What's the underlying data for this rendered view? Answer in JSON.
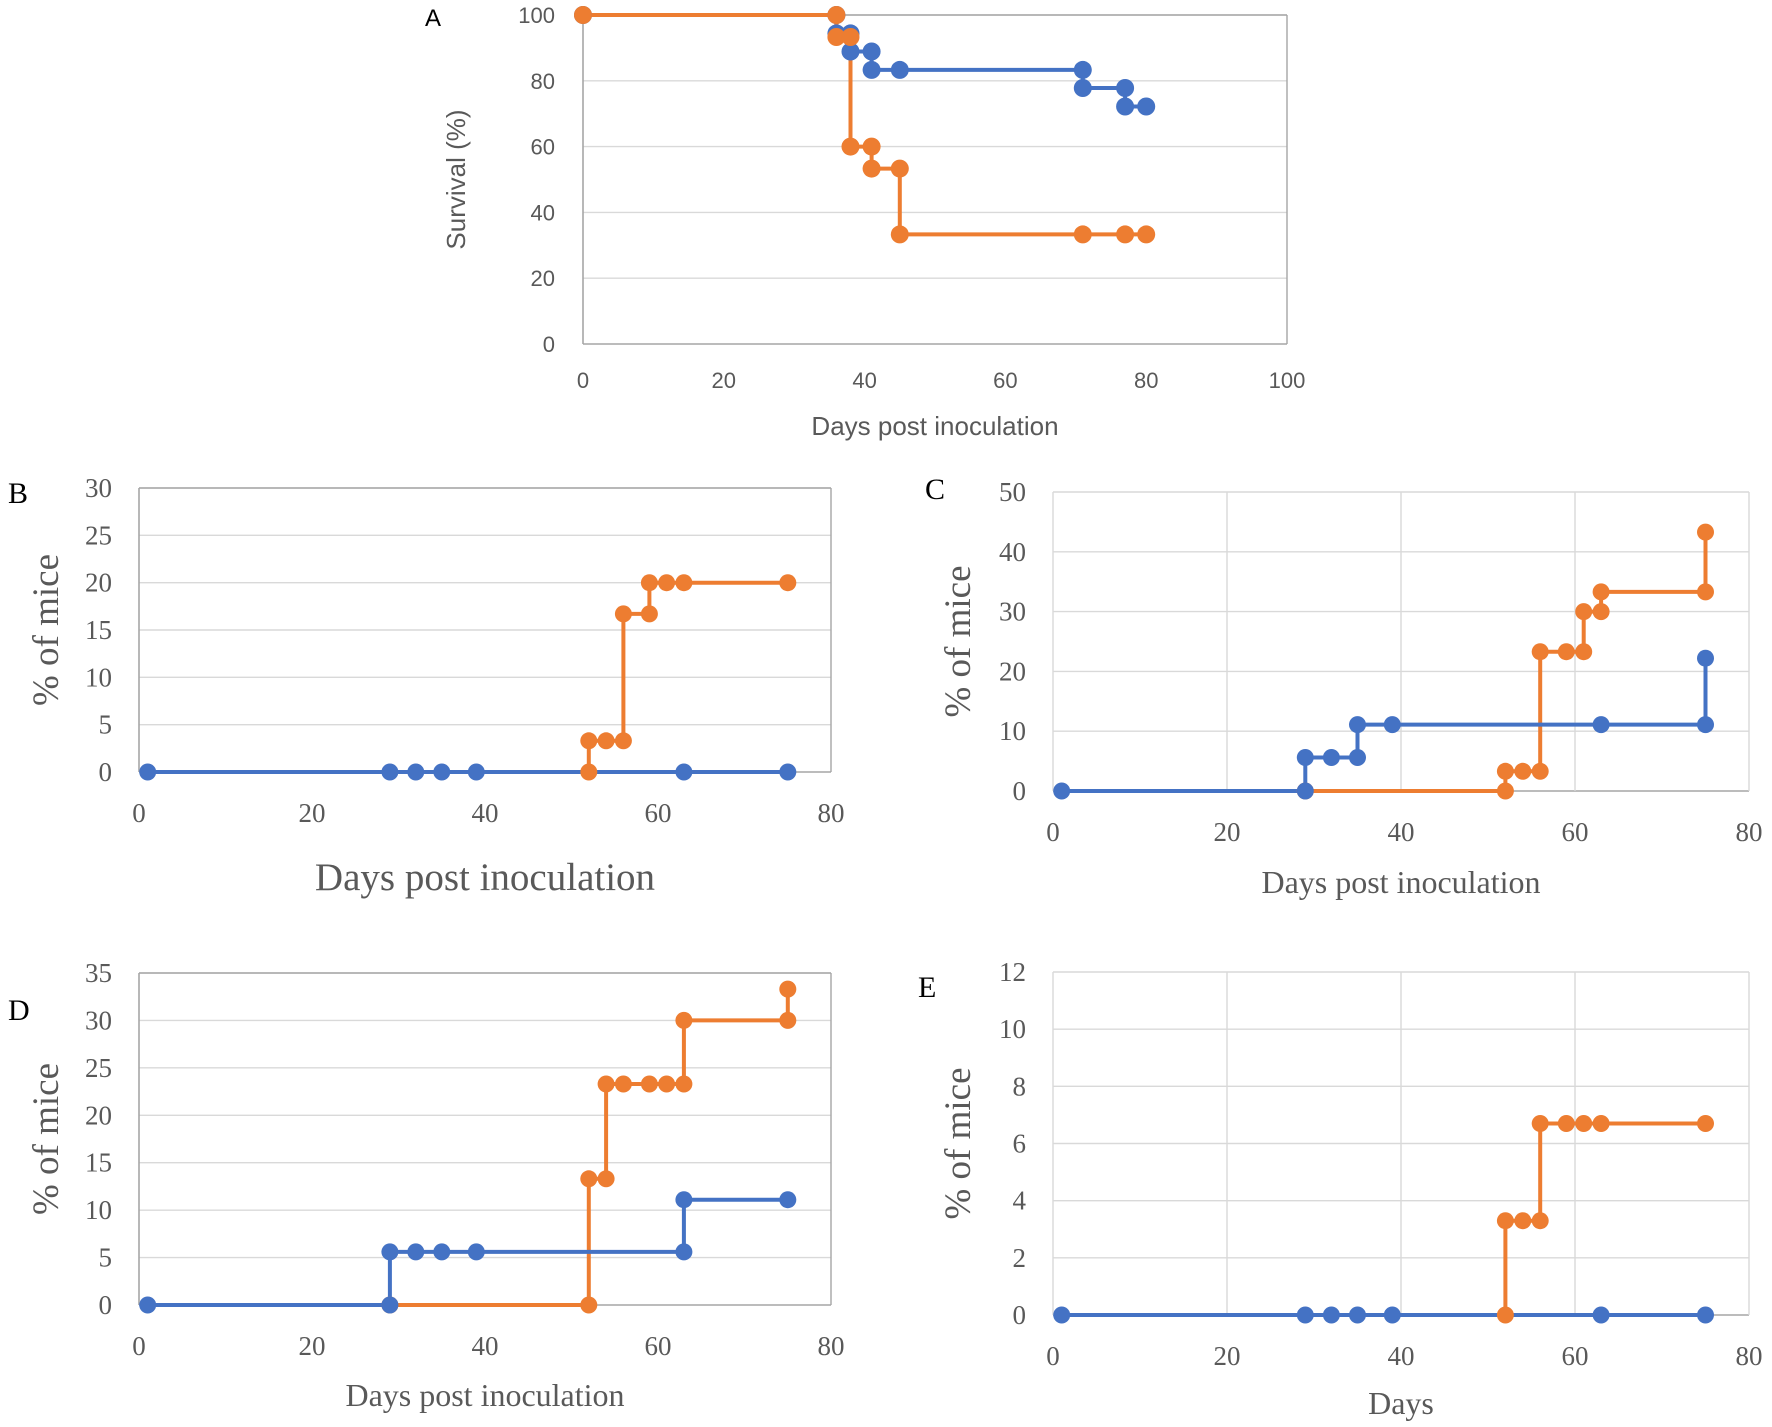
{
  "colors": {
    "series_blue": "#4472C4",
    "series_orange": "#ED7D31",
    "grid": "#D9D9D9",
    "axis": "#A6A6A6"
  },
  "chart_data": [
    {
      "panel": "A",
      "type": "line",
      "step": true,
      "xlabel": "Days  post inoculation",
      "ylabel": "Survival (%)",
      "xlim": [
        0,
        100
      ],
      "ylim": [
        0,
        100
      ],
      "xticks": [
        "0",
        "20",
        "40",
        "60",
        "80",
        "100"
      ],
      "yticks": [
        "0",
        "20",
        "40",
        "60",
        "80",
        "100"
      ],
      "grid": "horizontal",
      "series": [
        {
          "name": "blue",
          "color": "#4472C4",
          "points": [
            [
              0,
              100
            ],
            [
              36,
              100
            ],
            [
              36,
              94.4
            ],
            [
              38,
              94.4
            ],
            [
              38,
              88.9
            ],
            [
              41,
              88.9
            ],
            [
              41,
              83.3
            ],
            [
              45,
              83.3
            ],
            [
              71,
              83.3
            ],
            [
              71,
              77.8
            ],
            [
              77,
              77.8
            ],
            [
              77,
              72.2
            ],
            [
              80,
              72.2
            ]
          ]
        },
        {
          "name": "orange",
          "color": "#ED7D31",
          "points": [
            [
              0,
              100
            ],
            [
              36,
              100
            ],
            [
              36,
              93.3
            ],
            [
              38,
              93.3
            ],
            [
              38,
              60
            ],
            [
              41,
              60
            ],
            [
              41,
              53.3
            ],
            [
              45,
              53.3
            ],
            [
              45,
              33.3
            ],
            [
              71,
              33.3
            ],
            [
              77,
              33.3
            ],
            [
              80,
              33.3
            ]
          ]
        }
      ]
    },
    {
      "panel": "B",
      "type": "line",
      "step": true,
      "xlabel": "Days  post inoculation",
      "ylabel": "% of mice",
      "xlim": [
        0,
        80
      ],
      "ylim": [
        0,
        30
      ],
      "xticks": [
        "0",
        "20",
        "40",
        "60",
        "80"
      ],
      "yticks": [
        "0",
        "5",
        "10",
        "15",
        "20",
        "25",
        "30"
      ],
      "grid": "horizontal",
      "series": [
        {
          "name": "orange",
          "color": "#ED7D31",
          "points": [
            [
              52,
              0
            ],
            [
              52,
              3.3
            ],
            [
              54,
              3.3
            ],
            [
              56,
              3.3
            ],
            [
              56,
              16.7
            ],
            [
              59,
              16.7
            ],
            [
              59,
              20
            ],
            [
              61,
              20
            ],
            [
              63,
              20
            ],
            [
              75,
              20
            ]
          ]
        },
        {
          "name": "blue",
          "color": "#4472C4",
          "points": [
            [
              1,
              0
            ],
            [
              29,
              0
            ],
            [
              32,
              0
            ],
            [
              35,
              0
            ],
            [
              39,
              0
            ],
            [
              63,
              0
            ],
            [
              75,
              0
            ]
          ]
        }
      ]
    },
    {
      "panel": "C",
      "type": "line",
      "step": true,
      "xlabel": "Days  post inoculation",
      "ylabel": "% of mice",
      "xlim": [
        0,
        80
      ],
      "ylim": [
        0,
        50
      ],
      "xticks": [
        "0",
        "20",
        "40",
        "60",
        "80"
      ],
      "yticks": [
        "0",
        "10",
        "20",
        "30",
        "40",
        "50"
      ],
      "grid": "both",
      "series": [
        {
          "name": "orange",
          "color": "#ED7D31",
          "points": [
            [
              29,
              0
            ],
            [
              52,
              0
            ],
            [
              52,
              3.3
            ],
            [
              54,
              3.3
            ],
            [
              56,
              3.3
            ],
            [
              56,
              23.3
            ],
            [
              59,
              23.3
            ],
            [
              61,
              23.3
            ],
            [
              61,
              30
            ],
            [
              63,
              30
            ],
            [
              63,
              33.3
            ],
            [
              75,
              33.3
            ],
            [
              75,
              43.3
            ]
          ]
        },
        {
          "name": "blue",
          "color": "#4472C4",
          "points": [
            [
              1,
              0
            ],
            [
              29,
              0
            ],
            [
              29,
              5.6
            ],
            [
              32,
              5.6
            ],
            [
              35,
              5.6
            ],
            [
              35,
              11.1
            ],
            [
              39,
              11.1
            ],
            [
              63,
              11.1
            ],
            [
              75,
              11.1
            ],
            [
              75,
              22.2
            ]
          ]
        }
      ]
    },
    {
      "panel": "D",
      "type": "line",
      "step": true,
      "xlabel": "Days  post inoculation",
      "ylabel": "% of mice",
      "xlim": [
        0,
        80
      ],
      "ylim": [
        0,
        35
      ],
      "xticks": [
        "0",
        "20",
        "40",
        "60",
        "80"
      ],
      "yticks": [
        "0",
        "5",
        "10",
        "15",
        "20",
        "25",
        "30",
        "35"
      ],
      "grid": "horizontal",
      "series": [
        {
          "name": "orange",
          "color": "#ED7D31",
          "points": [
            [
              29,
              0
            ],
            [
              52,
              0
            ],
            [
              52,
              13.3
            ],
            [
              54,
              13.3
            ],
            [
              54,
              23.3
            ],
            [
              56,
              23.3
            ],
            [
              59,
              23.3
            ],
            [
              61,
              23.3
            ],
            [
              63,
              23.3
            ],
            [
              63,
              30
            ],
            [
              75,
              30
            ],
            [
              75,
              33.3
            ]
          ]
        },
        {
          "name": "blue",
          "color": "#4472C4",
          "points": [
            [
              1,
              0
            ],
            [
              29,
              0
            ],
            [
              29,
              5.6
            ],
            [
              32,
              5.6
            ],
            [
              35,
              5.6
            ],
            [
              39,
              5.6
            ],
            [
              63,
              5.6
            ],
            [
              63,
              11.1
            ],
            [
              75,
              11.1
            ]
          ]
        }
      ]
    },
    {
      "panel": "E",
      "type": "line",
      "step": true,
      "xlabel": "Days",
      "ylabel": "% of mice",
      "xlim": [
        0,
        80
      ],
      "ylim": [
        0,
        12
      ],
      "xticks": [
        "0",
        "20",
        "40",
        "60",
        "80"
      ],
      "yticks": [
        "0",
        "2",
        "4",
        "6",
        "8",
        "10",
        "12"
      ],
      "grid": "both",
      "series": [
        {
          "name": "orange",
          "color": "#ED7D31",
          "points": [
            [
              52,
              0
            ],
            [
              52,
              3.3
            ],
            [
              54,
              3.3
            ],
            [
              56,
              3.3
            ],
            [
              56,
              6.7
            ],
            [
              59,
              6.7
            ],
            [
              61,
              6.7
            ],
            [
              63,
              6.7
            ],
            [
              75,
              6.7
            ]
          ]
        },
        {
          "name": "blue",
          "color": "#4472C4",
          "points": [
            [
              1,
              0
            ],
            [
              29,
              0
            ],
            [
              32,
              0
            ],
            [
              35,
              0
            ],
            [
              39,
              0
            ],
            [
              63,
              0
            ],
            [
              75,
              0
            ]
          ]
        }
      ]
    }
  ]
}
